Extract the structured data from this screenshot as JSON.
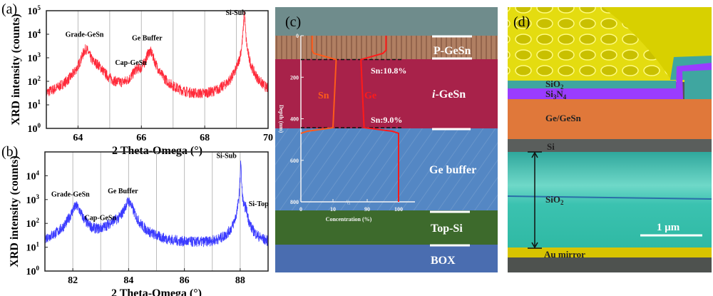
{
  "chart_data": [
    {
      "panel": "(a)",
      "type": "line",
      "xlabel": "2 Theta-Omega (°)",
      "ylabel": "XRD intensity (counts)",
      "xlim": [
        63,
        70
      ],
      "ylim": [
        1,
        100000
      ],
      "yscale": "log",
      "xticks": [
        "64",
        "66",
        "68",
        "70"
      ],
      "yticks": [
        "10",
        "10",
        "10",
        "10",
        "10",
        "10"
      ],
      "ytick_exponents": [
        "0",
        "1",
        "2",
        "3",
        "4",
        "5"
      ],
      "grid": "vertical",
      "color": "#ff2a3a",
      "background_counts": 5,
      "peaks": [
        {
          "label": "Grade-GeSn",
          "x": 64.25,
          "y": 2200,
          "width": 0.12
        },
        {
          "label": "",
          "x": 64.6,
          "y": 300,
          "width": 0.2
        },
        {
          "label": "Cap-GeSn",
          "x": 65.85,
          "y": 180,
          "width": 0.12
        },
        {
          "label": "Ge Buffer",
          "x": 66.27,
          "y": 1800,
          "width": 0.12
        },
        {
          "label": "Si-Sub",
          "x": 69.25,
          "y": 100000,
          "width": 0.015
        }
      ]
    },
    {
      "panel": "(b)",
      "type": "line",
      "xlabel": "2 Theta-Omega (°)",
      "ylabel": "XRD intensity (counts)",
      "xlim": [
        81,
        89
      ],
      "ylim": [
        1,
        100000
      ],
      "yscale": "log",
      "xticks": [
        "82",
        "84",
        "86",
        "88"
      ],
      "yticks": [
        "10",
        "10",
        "10",
        "10",
        "10"
      ],
      "ytick_exponents": [
        "0",
        "1",
        "2",
        "3",
        "4"
      ],
      "grid": "vertical",
      "color": "#3b3bff",
      "background_counts": 10,
      "peaks": [
        {
          "label": "Grade-GeSn",
          "x": 82.12,
          "y": 500,
          "width": 0.17
        },
        {
          "label": "Cap-GeSn",
          "x": 83.5,
          "y": 60,
          "width": 0.35
        },
        {
          "label": "Ge Buffer",
          "x": 84.0,
          "y": 800,
          "width": 0.14
        },
        {
          "label": "Si-Sub",
          "x": 88.02,
          "y": 40000,
          "width": 0.012
        },
        {
          "label": "Si-Top",
          "x": 88.2,
          "y": 300,
          "width": 0.05
        }
      ]
    },
    {
      "panel": "(c)",
      "type": "line",
      "xlabel": "Concentration (%)",
      "ylabel": "Depth (nm)",
      "xticks": [
        "0",
        "10",
        "90",
        "100"
      ],
      "yticks": [
        "0",
        "200",
        "400",
        "600",
        "800"
      ],
      "ylim": [
        0,
        800
      ],
      "series": [
        {
          "name": "Sn",
          "color": "#ff5a1a",
          "depth": [
            0,
            70,
            85,
            115,
            443,
            460,
            470
          ],
          "conc": [
            3.5,
            3.5,
            4,
            11,
            10,
            2,
            0
          ]
        },
        {
          "name": "Ge",
          "color": "#ff1a1a",
          "depth": [
            0,
            70,
            85,
            115,
            443,
            460,
            470,
            800
          ],
          "conc": [
            96,
            96,
            95,
            88,
            89,
            98,
            100,
            100
          ]
        }
      ],
      "annotations": [
        "Sn:10.8%",
        "Sn:9.0%"
      ]
    }
  ],
  "panel_labels": [
    "(a)",
    "(b)",
    "(c)",
    "(d)"
  ],
  "panel_c": {
    "layers": [
      "P-GeSn",
      "i-GeSn",
      "Ge buffer",
      "Top-Si",
      "BOX"
    ],
    "i_prefix": "i",
    "i_suffix": "-GeSn"
  },
  "panel_d": {
    "layers": [
      {
        "label": "SiO",
        "sub": "2"
      },
      {
        "label": "Si",
        "sub": "3",
        "label2": "N",
        "sub2": "4"
      },
      {
        "label": "Ge/GeSn"
      },
      {
        "label": "Si"
      },
      {
        "label": "SiO",
        "sub": "2"
      },
      {
        "label": "Au mirror"
      }
    ],
    "scale_bar": "1 μm",
    "colors": {
      "gold": "#e8e000",
      "sio2": "#3fa6a0",
      "si3n4": "#9a3cff",
      "gegesn": "#e0783a",
      "si": "#5a5e5c",
      "oxide": "#3ec9b4"
    }
  }
}
